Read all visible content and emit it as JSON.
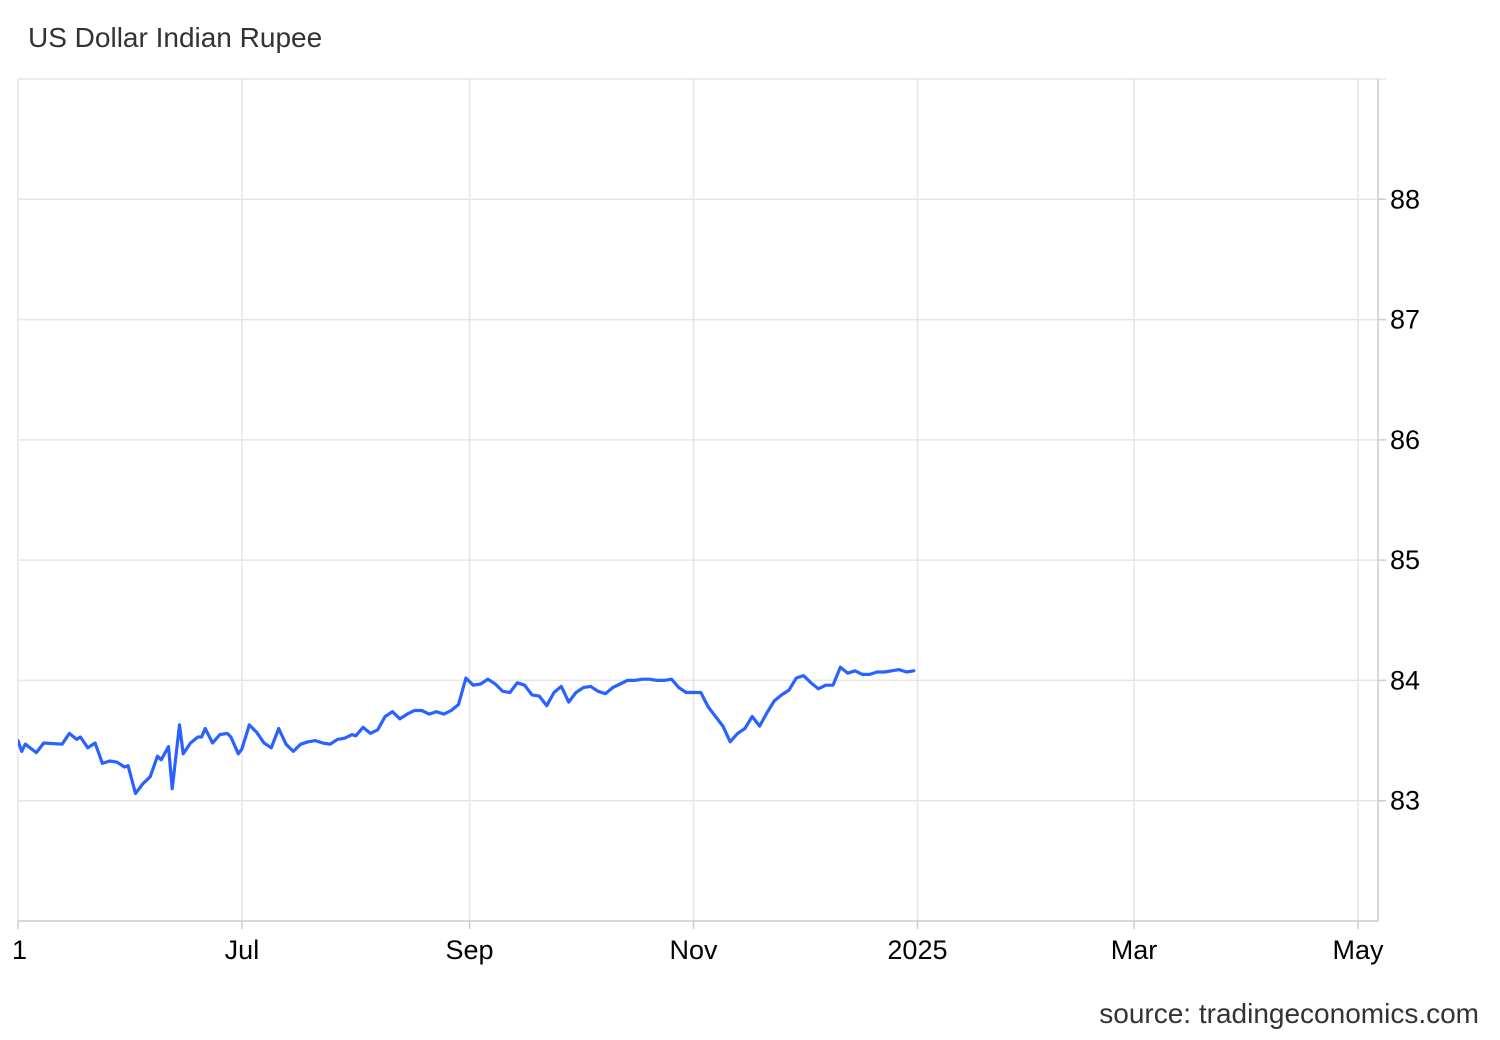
{
  "title": "US Dollar Indian Rupee",
  "source": "source: tradingeconomics.com",
  "colors": {
    "line": "#2962ff",
    "grid": "#e6e6e6",
    "axis": "#cccccc"
  },
  "chart_data": {
    "type": "line",
    "title": "US Dollar Indian Rupee",
    "xlabel": "",
    "ylabel": "",
    "ylim": [
      82,
      89
    ],
    "grid": true,
    "y_axis_side": "right",
    "x_ticks": [
      {
        "label": "1",
        "date": "2024-05-01"
      },
      {
        "label": "Jul",
        "date": "2024-07-01"
      },
      {
        "label": "Sep",
        "date": "2024-09-01"
      },
      {
        "label": "Nov",
        "date": "2024-11-01"
      },
      {
        "label": "2025",
        "date": "2025-01-01"
      },
      {
        "label": "Mar",
        "date": "2025-03-01"
      },
      {
        "label": "May",
        "date": "2025-05-01"
      }
    ],
    "y_ticks": [
      83,
      84,
      85,
      86,
      87,
      88
    ],
    "series": [
      {
        "values": [
          [
            "2024-05-01",
            83.5
          ],
          [
            "2024-05-02",
            83.41
          ],
          [
            "2024-05-03",
            83.47
          ],
          [
            "2024-05-06",
            83.4
          ],
          [
            "2024-05-08",
            83.48
          ],
          [
            "2024-05-13",
            83.47
          ],
          [
            "2024-05-15",
            83.56
          ],
          [
            "2024-05-17",
            83.51
          ],
          [
            "2024-05-18",
            83.53
          ],
          [
            "2024-05-20",
            83.44
          ],
          [
            "2024-05-22",
            83.48
          ],
          [
            "2024-05-24",
            83.31
          ],
          [
            "2024-05-26",
            83.33
          ],
          [
            "2024-05-28",
            83.32
          ],
          [
            "2024-05-30",
            83.28
          ],
          [
            "2024-05-31",
            83.29
          ],
          [
            "2024-06-02",
            83.06
          ],
          [
            "2024-06-04",
            83.14
          ],
          [
            "2024-06-06",
            83.2
          ],
          [
            "2024-06-08",
            83.37
          ],
          [
            "2024-06-09",
            83.34
          ],
          [
            "2024-06-11",
            83.45
          ],
          [
            "2024-06-12",
            83.1
          ],
          [
            "2024-06-14",
            83.63
          ],
          [
            "2024-06-15",
            83.39
          ],
          [
            "2024-06-17",
            83.48
          ],
          [
            "2024-06-19",
            83.53
          ],
          [
            "2024-06-20",
            83.53
          ],
          [
            "2024-06-21",
            83.6
          ],
          [
            "2024-06-23",
            83.48
          ],
          [
            "2024-06-25",
            83.55
          ],
          [
            "2024-06-27",
            83.56
          ],
          [
            "2024-06-28",
            83.53
          ],
          [
            "2024-06-30",
            83.39
          ],
          [
            "2024-07-01",
            83.43
          ],
          [
            "2024-07-03",
            83.63
          ],
          [
            "2024-07-05",
            83.57
          ],
          [
            "2024-07-07",
            83.48
          ],
          [
            "2024-07-09",
            83.44
          ],
          [
            "2024-07-11",
            83.6
          ],
          [
            "2024-07-13",
            83.47
          ],
          [
            "2024-07-15",
            83.41
          ],
          [
            "2024-07-17",
            83.47
          ],
          [
            "2024-07-19",
            83.49
          ],
          [
            "2024-07-21",
            83.5
          ],
          [
            "2024-07-23",
            83.48
          ],
          [
            "2024-07-25",
            83.47
          ],
          [
            "2024-07-27",
            83.51
          ],
          [
            "2024-07-29",
            83.52
          ],
          [
            "2024-07-31",
            83.55
          ],
          [
            "2024-08-01",
            83.54
          ],
          [
            "2024-08-03",
            83.61
          ],
          [
            "2024-08-05",
            83.56
          ],
          [
            "2024-08-07",
            83.59
          ],
          [
            "2024-08-09",
            83.7
          ],
          [
            "2024-08-11",
            83.74
          ],
          [
            "2024-08-13",
            83.68
          ],
          [
            "2024-08-15",
            83.72
          ],
          [
            "2024-08-17",
            83.75
          ],
          [
            "2024-08-19",
            83.75
          ],
          [
            "2024-08-21",
            83.72
          ],
          [
            "2024-08-23",
            83.74
          ],
          [
            "2024-08-25",
            83.72
          ],
          [
            "2024-08-27",
            83.75
          ],
          [
            "2024-08-29",
            83.8
          ],
          [
            "2024-08-31",
            84.02
          ],
          [
            "2024-09-02",
            83.96
          ],
          [
            "2024-09-04",
            83.97
          ],
          [
            "2024-09-06",
            84.01
          ],
          [
            "2024-09-08",
            83.97
          ],
          [
            "2024-09-10",
            83.91
          ],
          [
            "2024-09-12",
            83.9
          ],
          [
            "2024-09-14",
            83.98
          ],
          [
            "2024-09-16",
            83.96
          ],
          [
            "2024-09-18",
            83.88
          ],
          [
            "2024-09-20",
            83.87
          ],
          [
            "2024-09-22",
            83.79
          ],
          [
            "2024-09-24",
            83.9
          ],
          [
            "2024-09-26",
            83.95
          ],
          [
            "2024-09-28",
            83.82
          ],
          [
            "2024-09-30",
            83.9
          ],
          [
            "2024-10-02",
            83.94
          ],
          [
            "2024-10-04",
            83.95
          ],
          [
            "2024-10-06",
            83.91
          ],
          [
            "2024-10-08",
            83.89
          ],
          [
            "2024-10-10",
            83.94
          ],
          [
            "2024-10-12",
            83.97
          ],
          [
            "2024-10-14",
            84.0
          ],
          [
            "2024-10-16",
            84.0
          ],
          [
            "2024-10-18",
            84.01
          ],
          [
            "2024-10-20",
            84.01
          ],
          [
            "2024-10-22",
            84.0
          ],
          [
            "2024-10-24",
            84.0
          ],
          [
            "2024-10-26",
            84.01
          ],
          [
            "2024-10-28",
            83.94
          ],
          [
            "2024-10-30",
            83.9
          ],
          [
            "2024-11-01",
            83.9
          ],
          [
            "2024-11-03",
            83.9
          ],
          [
            "2024-11-05",
            83.78
          ],
          [
            "2024-11-07",
            83.7
          ],
          [
            "2024-11-09",
            83.62
          ],
          [
            "2024-11-11",
            83.49
          ],
          [
            "2024-11-13",
            83.56
          ],
          [
            "2024-11-15",
            83.6
          ],
          [
            "2024-11-17",
            83.7
          ],
          [
            "2024-11-19",
            83.62
          ],
          [
            "2024-11-21",
            83.73
          ],
          [
            "2024-11-23",
            83.83
          ],
          [
            "2024-11-25",
            83.88
          ],
          [
            "2024-11-27",
            83.92
          ],
          [
            "2024-11-29",
            84.02
          ],
          [
            "2024-12-01",
            84.04
          ],
          [
            "2024-12-03",
            83.98
          ],
          [
            "2024-12-05",
            83.93
          ],
          [
            "2024-12-07",
            83.96
          ],
          [
            "2024-12-09",
            83.96
          ],
          [
            "2024-12-11",
            84.11
          ],
          [
            "2024-12-13",
            84.06
          ],
          [
            "2024-12-15",
            84.08
          ],
          [
            "2024-12-17",
            84.05
          ],
          [
            "2024-12-19",
            84.05
          ],
          [
            "2024-12-21",
            84.07
          ],
          [
            "2024-12-23",
            84.07
          ],
          [
            "2024-12-25",
            84.08
          ],
          [
            "2024-12-27",
            84.09
          ],
          [
            "2024-12-29",
            84.07
          ],
          [
            "2024-12-31",
            84.08
          ]
        ]
      }
    ]
  }
}
